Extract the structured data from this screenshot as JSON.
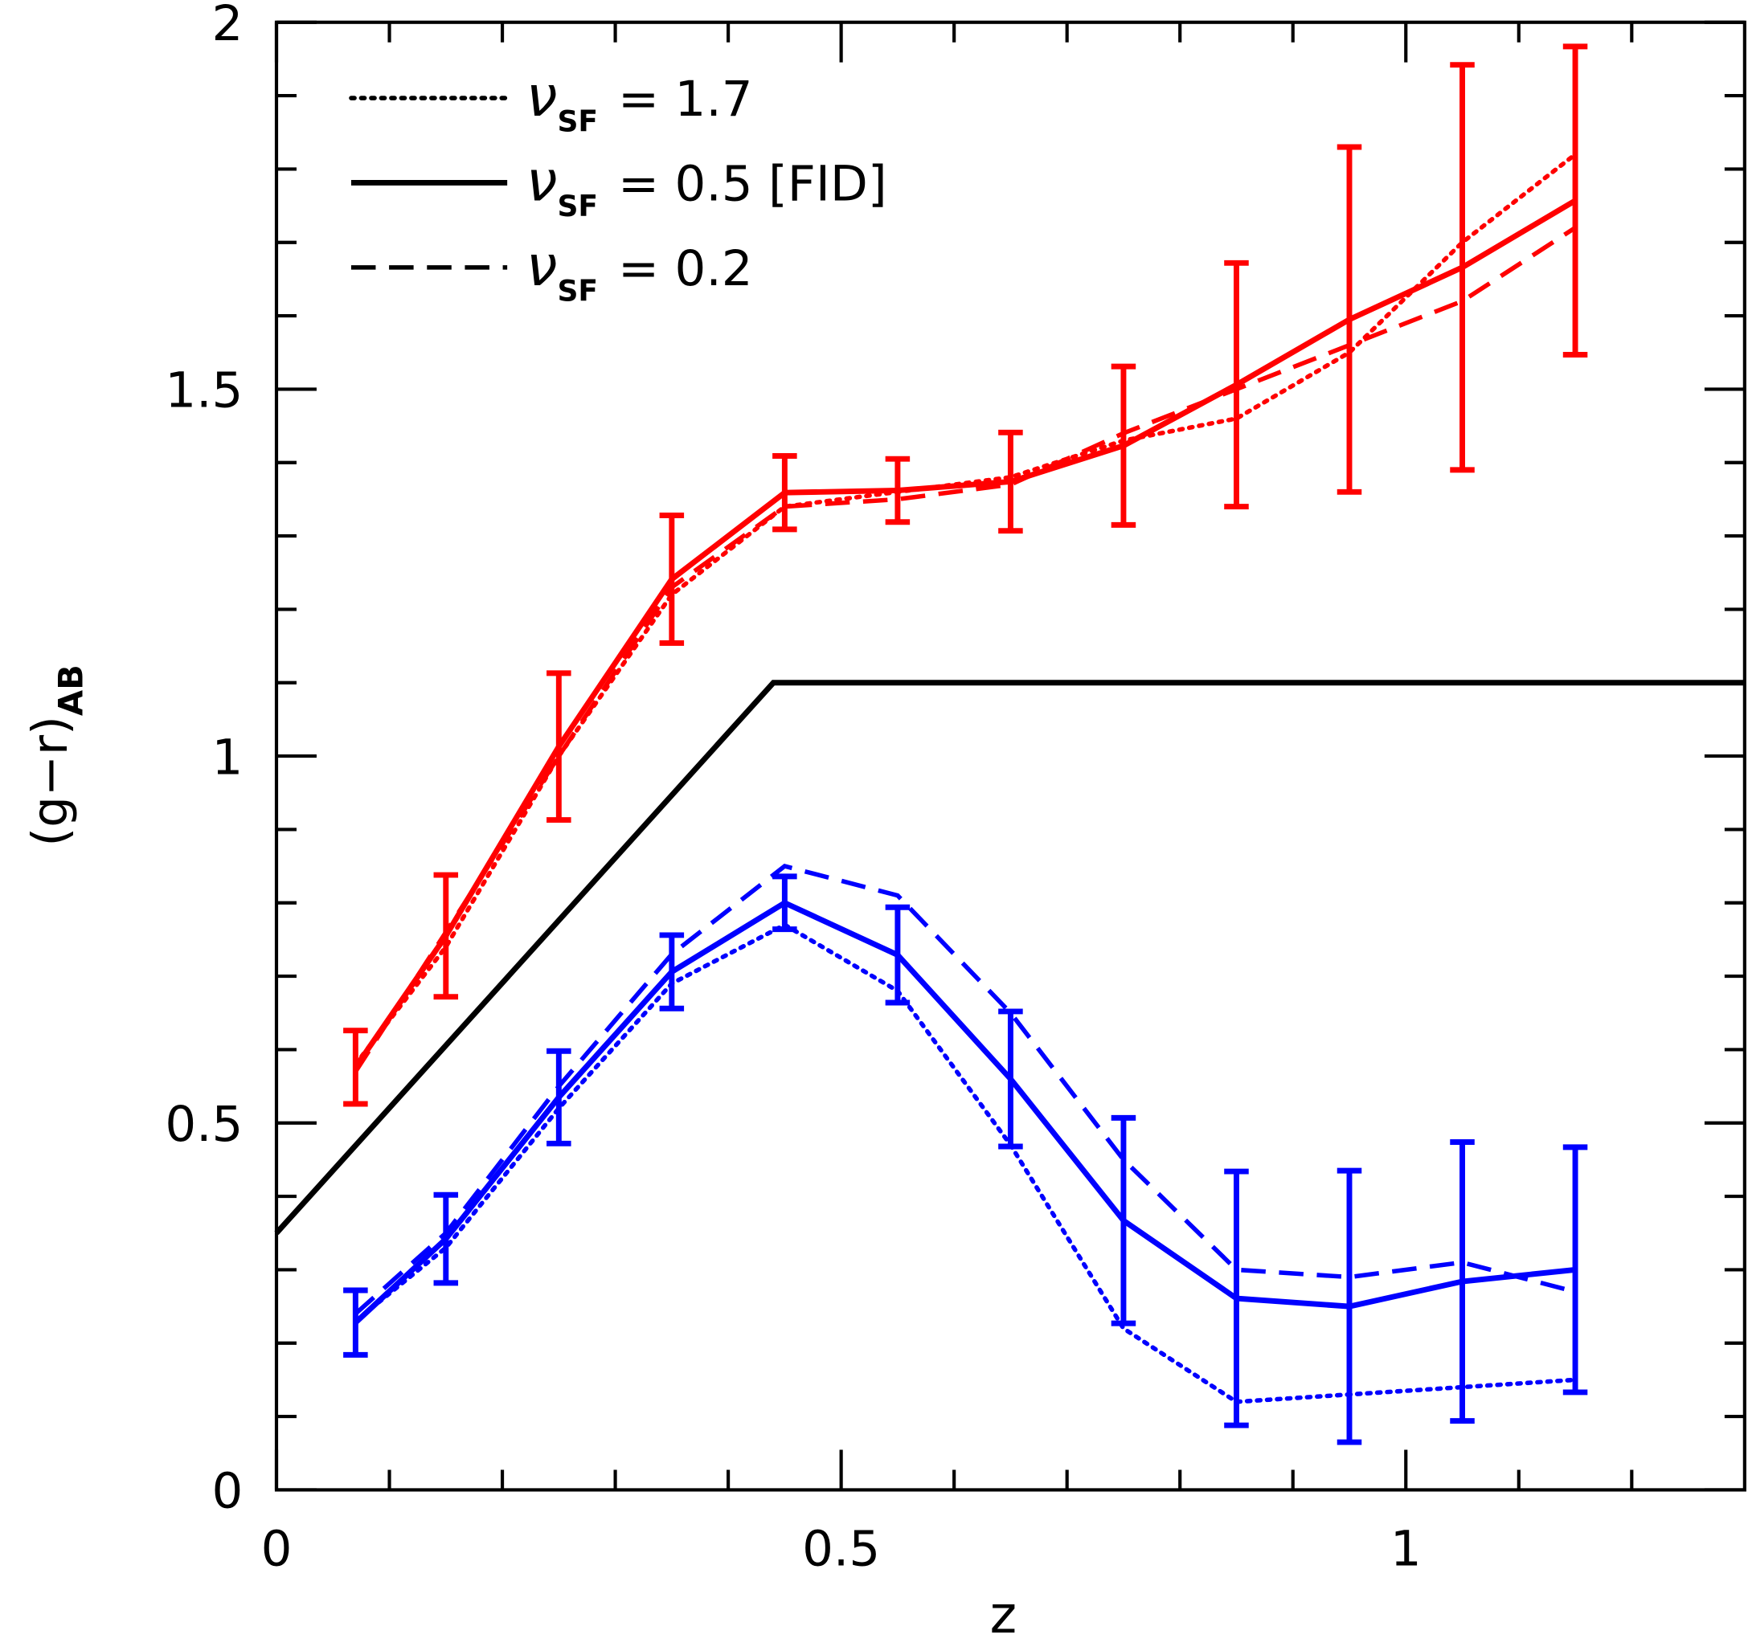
{
  "chart_data": {
    "type": "line",
    "xlabel": "z",
    "ylabel": "(g−r)",
    "ylabel_sub": "AB",
    "xlim": [
      0,
      1.3
    ],
    "ylim": [
      0,
      2
    ],
    "xticks": [
      0,
      0.5,
      1
    ],
    "yticks": [
      0,
      0.5,
      1,
      1.5,
      2
    ],
    "xminorticks": [
      0.1,
      0.2,
      0.3,
      0.4,
      0.6,
      0.7,
      0.8,
      0.9,
      1.1,
      1.2
    ],
    "yminorticks": [
      0.1,
      0.2,
      0.3,
      0.4,
      0.6,
      0.7,
      0.8,
      0.9,
      1.1,
      1.2,
      1.3,
      1.4,
      1.6,
      1.7,
      1.8,
      1.9
    ],
    "legend_position": "upper left",
    "legend": [
      {
        "symbol": "ν",
        "sub": "SF",
        "text": "= 1.7",
        "style": "dotted"
      },
      {
        "symbol": "ν",
        "sub": "SF",
        "text": "= 0.5 [FID]",
        "style": "solid"
      },
      {
        "symbol": "ν",
        "sub": "SF",
        "text": "= 0.2",
        "style": "dashed"
      }
    ],
    "x": [
      0.07,
      0.15,
      0.25,
      0.35,
      0.45,
      0.55,
      0.65,
      0.75,
      0.85,
      0.95,
      1.05,
      1.15
    ],
    "series": [
      {
        "color": "#ff0000",
        "style": "dotted",
        "values": [
          0.58,
          0.74,
          1.0,
          1.22,
          1.34,
          1.36,
          1.38,
          1.43,
          1.46,
          1.55,
          1.7,
          1.82
        ]
      },
      {
        "color": "#ff0000",
        "style": "dashed",
        "values": [
          0.57,
          0.76,
          1.0,
          1.23,
          1.34,
          1.35,
          1.37,
          1.44,
          1.5,
          1.56,
          1.62,
          1.72
        ]
      },
      {
        "color": "#ff0000",
        "style": "solid",
        "values": [
          0.576,
          0.755,
          1.013,
          1.241,
          1.359,
          1.362,
          1.374,
          1.423,
          1.506,
          1.595,
          1.666,
          1.757
        ],
        "errors": [
          0.05,
          0.083,
          0.1,
          0.087,
          0.05,
          0.043,
          0.067,
          0.108,
          0.166,
          0.235,
          0.276,
          0.21
        ]
      },
      {
        "color": "#0000ff",
        "style": "dotted",
        "values": [
          0.23,
          0.33,
          0.52,
          0.69,
          0.77,
          0.68,
          0.47,
          0.22,
          0.12,
          0.13,
          0.14,
          0.15
        ]
      },
      {
        "color": "#0000ff",
        "style": "dashed",
        "values": [
          0.24,
          0.35,
          0.55,
          0.73,
          0.85,
          0.81,
          0.65,
          0.45,
          0.3,
          0.29,
          0.31,
          0.27
        ]
      },
      {
        "color": "#0000ff",
        "style": "solid",
        "values": [
          0.228,
          0.342,
          0.535,
          0.706,
          0.8,
          0.729,
          0.56,
          0.367,
          0.261,
          0.25,
          0.284,
          0.3
        ],
        "errors": [
          0.044,
          0.06,
          0.063,
          0.05,
          0.036,
          0.065,
          0.092,
          0.14,
          0.173,
          0.185,
          0.19,
          0.167
        ]
      },
      {
        "color": "#000000",
        "style": "solid",
        "x": [
          0,
          0.44,
          1.3
        ],
        "values": [
          0.35,
          1.1,
          1.1
        ]
      }
    ]
  }
}
